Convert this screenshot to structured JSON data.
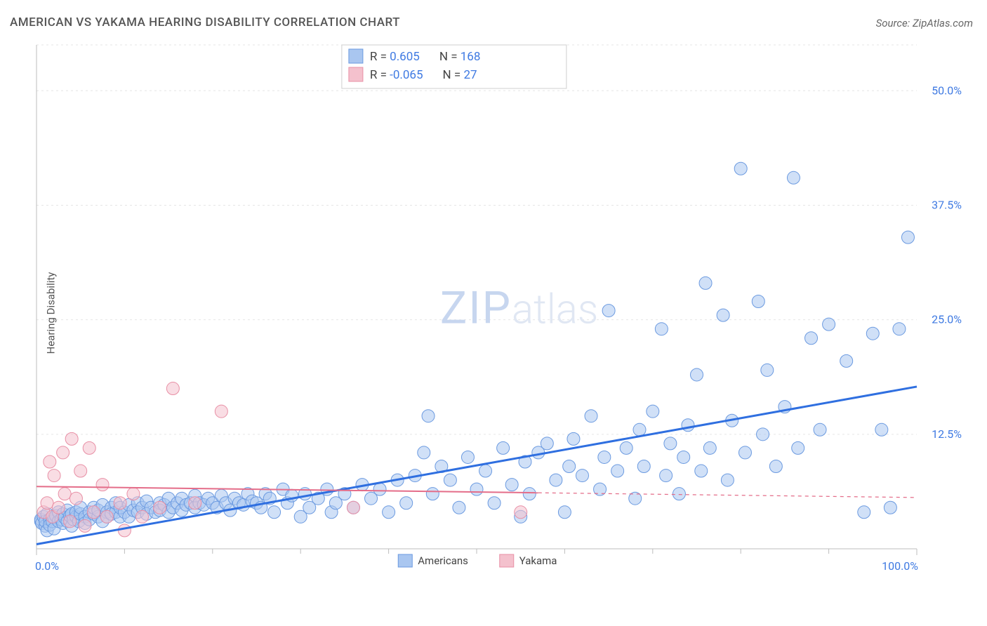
{
  "title": "AMERICAN VS YAKAMA HEARING DISABILITY CORRELATION CHART",
  "source": "Source: ZipAtlas.com",
  "ylabel": "Hearing Disability",
  "watermark": {
    "heavy": "ZIP",
    "light": "atlas"
  },
  "chart": {
    "type": "scatter",
    "xlim": [
      0,
      100
    ],
    "ylim": [
      0,
      55
    ],
    "xticks": [
      0,
      100
    ],
    "xtick_labels": [
      "0.0%",
      "100.0%"
    ],
    "xtick_minor": [
      10,
      20,
      30,
      40,
      50,
      60,
      70,
      80,
      90
    ],
    "yticks": [
      12.5,
      25.0,
      37.5,
      50.0
    ],
    "ytick_labels": [
      "12.5%",
      "25.0%",
      "37.5%",
      "50.0%"
    ],
    "grid_color": "#e5e5e5",
    "grid_dash": "3,4",
    "axis_color": "#bdbdbd",
    "background_color": "#ffffff",
    "marker_radius": 9,
    "marker_opacity": 0.55,
    "series": [
      {
        "name": "Americans",
        "fill": "#a9c6f0",
        "stroke": "#6b9ae0",
        "trend": {
          "slope": 0.172,
          "intercept": 0.5,
          "color": "#2f6fe0",
          "width": 3,
          "dash_after_last_x": false
        },
        "R": "0.605",
        "N": "168",
        "points": [
          [
            0.5,
            3.0
          ],
          [
            0.5,
            3.2
          ],
          [
            0.6,
            2.8
          ],
          [
            0.8,
            3.5
          ],
          [
            1.0,
            2.5
          ],
          [
            1.0,
            3.0
          ],
          [
            1.2,
            2.0
          ],
          [
            1.2,
            3.8
          ],
          [
            1.5,
            3.2
          ],
          [
            1.5,
            2.6
          ],
          [
            1.8,
            3.0
          ],
          [
            2.0,
            3.4
          ],
          [
            2.0,
            2.2
          ],
          [
            2.2,
            3.6
          ],
          [
            2.5,
            3.0
          ],
          [
            2.5,
            4.0
          ],
          [
            2.8,
            3.2
          ],
          [
            3.0,
            2.8
          ],
          [
            3.0,
            3.8
          ],
          [
            3.2,
            3.4
          ],
          [
            3.5,
            3.0
          ],
          [
            3.5,
            4.2
          ],
          [
            3.8,
            3.6
          ],
          [
            4.0,
            2.5
          ],
          [
            4.0,
            3.8
          ],
          [
            4.2,
            3.2
          ],
          [
            4.5,
            3.5
          ],
          [
            4.5,
            4.0
          ],
          [
            4.8,
            3.0
          ],
          [
            5.0,
            3.8
          ],
          [
            5.0,
            4.5
          ],
          [
            5.5,
            3.5
          ],
          [
            5.5,
            2.8
          ],
          [
            6.0,
            4.0
          ],
          [
            6.0,
            3.2
          ],
          [
            6.5,
            3.8
          ],
          [
            6.5,
            4.5
          ],
          [
            7.0,
            3.5
          ],
          [
            7.0,
            4.2
          ],
          [
            7.5,
            3.0
          ],
          [
            7.5,
            4.8
          ],
          [
            8.0,
            4.0
          ],
          [
            8.0,
            3.5
          ],
          [
            8.5,
            4.5
          ],
          [
            8.5,
            3.8
          ],
          [
            9.0,
            4.0
          ],
          [
            9.0,
            5.0
          ],
          [
            9.5,
            3.5
          ],
          [
            9.5,
            4.5
          ],
          [
            10.0,
            4.0
          ],
          [
            10.5,
            4.8
          ],
          [
            10.5,
            3.5
          ],
          [
            11.0,
            4.2
          ],
          [
            11.5,
            5.0
          ],
          [
            11.5,
            4.0
          ],
          [
            12.0,
            4.5
          ],
          [
            12.5,
            3.8
          ],
          [
            12.5,
            5.2
          ],
          [
            13.0,
            4.5
          ],
          [
            13.5,
            4.0
          ],
          [
            14.0,
            5.0
          ],
          [
            14.0,
            4.2
          ],
          [
            14.5,
            4.8
          ],
          [
            15.0,
            4.0
          ],
          [
            15.0,
            5.5
          ],
          [
            15.5,
            4.5
          ],
          [
            16.0,
            5.0
          ],
          [
            16.5,
            4.2
          ],
          [
            16.5,
            5.5
          ],
          [
            17.0,
            4.8
          ],
          [
            17.5,
            5.0
          ],
          [
            18.0,
            4.5
          ],
          [
            18.0,
            5.8
          ],
          [
            18.5,
            5.0
          ],
          [
            19.0,
            4.8
          ],
          [
            19.5,
            5.5
          ],
          [
            20.0,
            5.0
          ],
          [
            20.5,
            4.5
          ],
          [
            21.0,
            5.8
          ],
          [
            21.5,
            5.0
          ],
          [
            22.0,
            4.2
          ],
          [
            22.5,
            5.5
          ],
          [
            23.0,
            5.0
          ],
          [
            23.5,
            4.8
          ],
          [
            24.0,
            6.0
          ],
          [
            24.5,
            5.2
          ],
          [
            25.0,
            5.0
          ],
          [
            25.5,
            4.5
          ],
          [
            26.0,
            6.0
          ],
          [
            26.5,
            5.5
          ],
          [
            27.0,
            4.0
          ],
          [
            28.0,
            6.5
          ],
          [
            28.5,
            5.0
          ],
          [
            29.0,
            5.8
          ],
          [
            30.0,
            3.5
          ],
          [
            30.5,
            6.0
          ],
          [
            31.0,
            4.5
          ],
          [
            32.0,
            5.5
          ],
          [
            33.0,
            6.5
          ],
          [
            33.5,
            4.0
          ],
          [
            34.0,
            5.0
          ],
          [
            35.0,
            6.0
          ],
          [
            36.0,
            4.5
          ],
          [
            37.0,
            7.0
          ],
          [
            38.0,
            5.5
          ],
          [
            39.0,
            6.5
          ],
          [
            40.0,
            4.0
          ],
          [
            41.0,
            7.5
          ],
          [
            42.0,
            5.0
          ],
          [
            43.0,
            8.0
          ],
          [
            44.0,
            10.5
          ],
          [
            44.5,
            14.5
          ],
          [
            45.0,
            6.0
          ],
          [
            46.0,
            9.0
          ],
          [
            47.0,
            7.5
          ],
          [
            48.0,
            4.5
          ],
          [
            49.0,
            10.0
          ],
          [
            50.0,
            6.5
          ],
          [
            51.0,
            8.5
          ],
          [
            52.0,
            5.0
          ],
          [
            53.0,
            11.0
          ],
          [
            54.0,
            7.0
          ],
          [
            55.0,
            3.5
          ],
          [
            55.5,
            9.5
          ],
          [
            56.0,
            6.0
          ],
          [
            57.0,
            10.5
          ],
          [
            58.0,
            11.5
          ],
          [
            59.0,
            7.5
          ],
          [
            60.0,
            4.0
          ],
          [
            60.5,
            9.0
          ],
          [
            61.0,
            12.0
          ],
          [
            62.0,
            8.0
          ],
          [
            63.0,
            14.5
          ],
          [
            64.0,
            6.5
          ],
          [
            64.5,
            10.0
          ],
          [
            65.0,
            26.0
          ],
          [
            66.0,
            8.5
          ],
          [
            67.0,
            11.0
          ],
          [
            68.0,
            5.5
          ],
          [
            68.5,
            13.0
          ],
          [
            69.0,
            9.0
          ],
          [
            70.0,
            15.0
          ],
          [
            71.0,
            24.0
          ],
          [
            71.5,
            8.0
          ],
          [
            72.0,
            11.5
          ],
          [
            73.0,
            6.0
          ],
          [
            73.5,
            10.0
          ],
          [
            74.0,
            13.5
          ],
          [
            75.0,
            19.0
          ],
          [
            75.5,
            8.5
          ],
          [
            76.0,
            29.0
          ],
          [
            76.5,
            11.0
          ],
          [
            78.0,
            25.5
          ],
          [
            78.5,
            7.5
          ],
          [
            79.0,
            14.0
          ],
          [
            80.0,
            41.5
          ],
          [
            80.5,
            10.5
          ],
          [
            82.0,
            27.0
          ],
          [
            82.5,
            12.5
          ],
          [
            83.0,
            19.5
          ],
          [
            84.0,
            9.0
          ],
          [
            85.0,
            15.5
          ],
          [
            86.0,
            40.5
          ],
          [
            86.5,
            11.0
          ],
          [
            88.0,
            23.0
          ],
          [
            89.0,
            13.0
          ],
          [
            90.0,
            24.5
          ],
          [
            92.0,
            20.5
          ],
          [
            94.0,
            4.0
          ],
          [
            95.0,
            23.5
          ],
          [
            96.0,
            13.0
          ],
          [
            97.0,
            4.5
          ],
          [
            98.0,
            24.0
          ],
          [
            99.0,
            34.0
          ]
        ]
      },
      {
        "name": "Yakama",
        "fill": "#f4c1cd",
        "stroke": "#e88fa5",
        "trend": {
          "slope": -0.012,
          "intercept": 6.8,
          "color": "#e46d89",
          "width": 2,
          "dash_after_last_x": true,
          "last_x": 57
        },
        "R": "-0.065",
        "N": "27",
        "points": [
          [
            0.8,
            4.0
          ],
          [
            1.2,
            5.0
          ],
          [
            1.5,
            9.5
          ],
          [
            1.8,
            3.5
          ],
          [
            2.0,
            8.0
          ],
          [
            2.5,
            4.5
          ],
          [
            3.0,
            10.5
          ],
          [
            3.2,
            6.0
          ],
          [
            3.8,
            3.0
          ],
          [
            4.0,
            12.0
          ],
          [
            4.5,
            5.5
          ],
          [
            5.0,
            8.5
          ],
          [
            5.5,
            2.5
          ],
          [
            6.0,
            11.0
          ],
          [
            6.5,
            4.0
          ],
          [
            7.5,
            7.0
          ],
          [
            8.0,
            3.5
          ],
          [
            9.5,
            5.0
          ],
          [
            10.0,
            2.0
          ],
          [
            11.0,
            6.0
          ],
          [
            12.0,
            3.5
          ],
          [
            14.0,
            4.5
          ],
          [
            15.5,
            17.5
          ],
          [
            18.0,
            5.0
          ],
          [
            21.0,
            15.0
          ],
          [
            36.0,
            4.5
          ],
          [
            55.0,
            4.0
          ]
        ]
      }
    ],
    "legend": {
      "series": [
        {
          "label": "Americans",
          "fill": "#a9c6f0",
          "stroke": "#6b9ae0"
        },
        {
          "label": "Yakama",
          "fill": "#f4c1cd",
          "stroke": "#e88fa5"
        }
      ]
    }
  }
}
